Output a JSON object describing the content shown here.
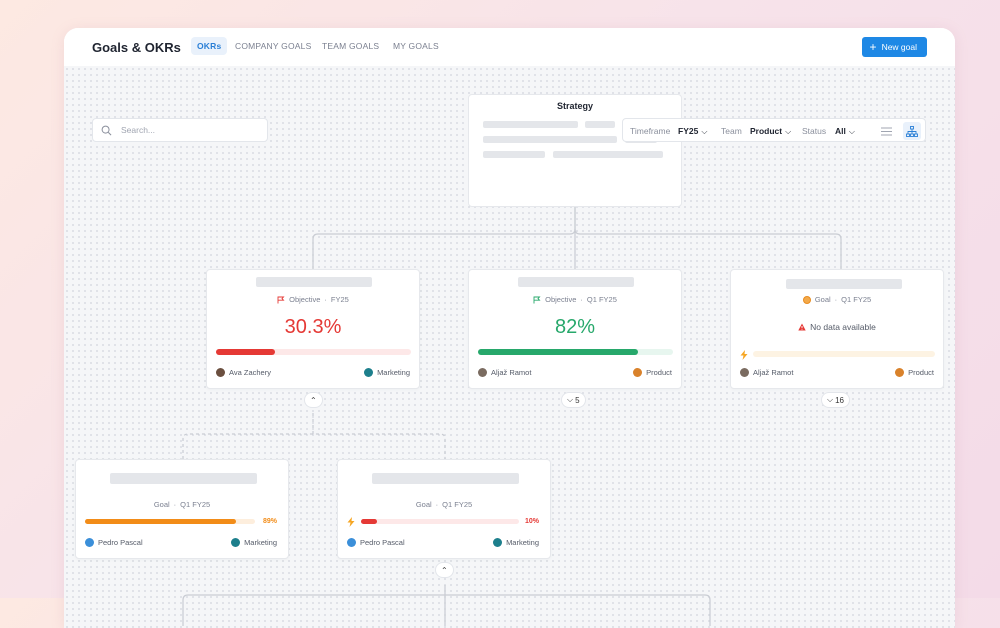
{
  "header": {
    "title": "Goals & OKRs",
    "tabs": [
      "OKRs",
      "COMPANY GOALS",
      "TEAM GOALS",
      "MY GOALS"
    ],
    "new_goal": "New goal"
  },
  "search": {
    "placeholder": "Search..."
  },
  "filters": {
    "timeframe_label": "Timeframe",
    "timeframe_value": "FY25",
    "team_label": "Team",
    "team_value": "Product",
    "status_label": "Status",
    "status_value": "All"
  },
  "strategy": {
    "title": "Strategy"
  },
  "cards": [
    {
      "kind": "Objective",
      "period": "FY25",
      "value": "30.3%",
      "progress": 0.303,
      "color": "#e53935",
      "track": "#fde8e8",
      "owner": "Ava Zachery",
      "team": "Marketing",
      "toggle": ""
    },
    {
      "kind": "Objective",
      "period": "Q1 FY25",
      "value": "82%",
      "progress": 0.82,
      "color": "#27a86b",
      "track": "#e7f6ef",
      "owner": "Aljaž Ramot",
      "team": "Product",
      "toggle": "5"
    },
    {
      "kind": "Goal",
      "period": "Q1 FY25",
      "value": "No data available",
      "progress": 0,
      "color": "#f6a623",
      "track": "#fdf3e3",
      "owner": "Aljaž Ramot",
      "team": "Product",
      "toggle": "16"
    },
    {
      "kind": "Goal",
      "period": "Q1 FY25",
      "value": "89%",
      "progress": 0.89,
      "color": "#f28c18",
      "track": "#fdeedd",
      "owner": "Pedro Pascal",
      "team": "Marketing"
    },
    {
      "kind": "Goal",
      "period": "Q1 FY25",
      "value": "10%",
      "progress": 0.1,
      "color": "#e53935",
      "track": "#fde8e8",
      "owner": "Pedro Pascal",
      "team": "Marketing"
    }
  ],
  "meta_separator": "·"
}
